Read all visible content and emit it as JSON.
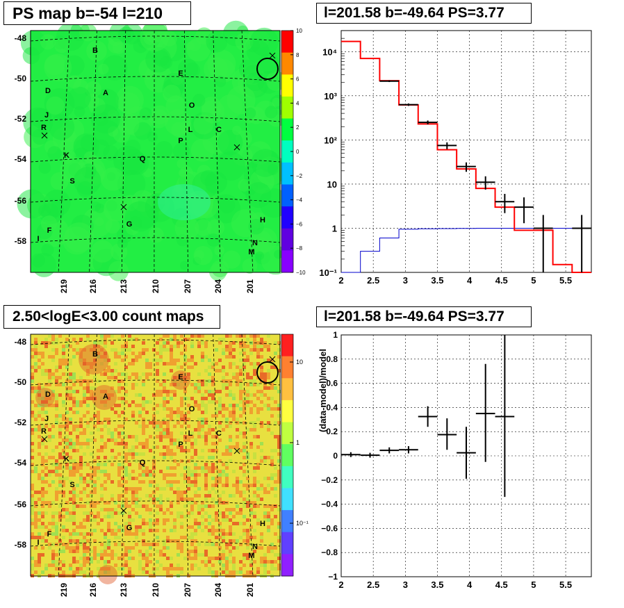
{
  "titles": {
    "ps_map": "PS map b=-54 l=210",
    "spectrum": "l=201.58 b=-49.64 PS=3.77",
    "count_map": "2.50<logE<3.00 count maps",
    "residual": "l=201.58 b=-49.64 PS=3.77"
  },
  "colors": {
    "model_red": "#ff0000",
    "model_blue": "#0000cc",
    "data_black": "#000000",
    "map_green": "#22ee44",
    "count_yellow": "#e8e040",
    "count_orange": "#ee8830"
  },
  "map_axes": {
    "b_ticks": [
      "-48",
      "-50",
      "-52",
      "-54",
      "-56",
      "-58"
    ],
    "l_ticks": [
      "219",
      "216",
      "213",
      "210",
      "207",
      "204",
      "201"
    ]
  },
  "source_labels": [
    "B",
    "E",
    "D",
    "A",
    "O",
    "J",
    "R",
    "L",
    "C",
    "P",
    "K",
    "Q",
    "S",
    "H",
    "F",
    "G",
    "I",
    "N",
    "M"
  ],
  "ps_colorbar_ticks": [
    "10",
    "8",
    "6",
    "4",
    "2",
    "0",
    "−2",
    "−4",
    "−6",
    "−8",
    "−10"
  ],
  "count_colorbar_ticks": [
    "10",
    "1",
    "10⁻¹"
  ],
  "chart_data": [
    {
      "type": "line",
      "title": "l=201.58 b=-49.64 PS=3.77",
      "xlabel": "",
      "ylabel": "",
      "xlim": [
        2,
        5.9
      ],
      "ylim": [
        0.1,
        30000
      ],
      "ylog": true,
      "grid": true,
      "x_ticks": [
        "2",
        "2.5",
        "3",
        "3.5",
        "4",
        "4.5",
        "5",
        "5.5"
      ],
      "y_ticks": [
        "10⁻¹",
        "1",
        "10",
        "10²",
        "10³",
        "10⁴"
      ],
      "bin_edges": [
        2.0,
        2.3,
        2.6,
        2.9,
        3.2,
        3.5,
        3.8,
        4.1,
        4.4,
        4.7,
        5.0,
        5.3,
        5.6,
        5.9
      ],
      "series": [
        {
          "values": [
            17000,
            7000,
            2200,
            620,
            230,
            60,
            22,
            8,
            3,
            0.9,
            0.9,
            0.15,
            0.1
          ]
        },
        {
          "values": [
            0.1,
            0.3,
            0.6,
            0.95,
            0.97,
            0.98,
            0.99,
            1.0,
            1.0,
            1.0,
            1.0,
            1.0,
            1.0
          ]
        }
      ],
      "data_points": [
        {
          "x": 2.75,
          "y": 2150,
          "xerr": 0.15,
          "ylo": 2050,
          "yhi": 2250
        },
        {
          "x": 3.05,
          "y": 630,
          "xerr": 0.15,
          "ylo": 590,
          "yhi": 670
        },
        {
          "x": 3.35,
          "y": 250,
          "xerr": 0.15,
          "ylo": 225,
          "yhi": 275
        },
        {
          "x": 3.65,
          "y": 75,
          "xerr": 0.15,
          "ylo": 62,
          "yhi": 88
        },
        {
          "x": 3.95,
          "y": 25,
          "xerr": 0.15,
          "ylo": 19,
          "yhi": 31
        },
        {
          "x": 4.25,
          "y": 11,
          "xerr": 0.15,
          "ylo": 7.5,
          "yhi": 15
        },
        {
          "x": 4.55,
          "y": 4,
          "xerr": 0.15,
          "ylo": 2.2,
          "yhi": 6
        },
        {
          "x": 4.85,
          "y": 3,
          "xerr": 0.15,
          "ylo": 1.3,
          "yhi": 5
        },
        {
          "x": 5.15,
          "y": 1,
          "xerr": 0.15,
          "ylo": 0.1,
          "yhi": 2
        },
        {
          "x": 5.75,
          "y": 1,
          "xerr": 0.15,
          "ylo": 0.1,
          "yhi": 2
        }
      ]
    },
    {
      "type": "scatter",
      "title": "l=201.58 b=-49.64 PS=3.77",
      "xlabel": "",
      "ylabel": "(data-model)/model",
      "xlim": [
        2,
        5.9
      ],
      "ylim": [
        -1,
        1
      ],
      "grid": true,
      "x_ticks": [
        "2",
        "2.5",
        "3",
        "3.5",
        "4",
        "4.5",
        "5",
        "5.5"
      ],
      "y_ticks": [
        "−1",
        "−0.8",
        "−0.6",
        "−0.4",
        "−0.2",
        "0",
        "0.2",
        "0.4",
        "0.6",
        "0.8",
        "1"
      ],
      "points": [
        {
          "x": 2.15,
          "y": 0.01,
          "xerr": 0.15,
          "ylo": -0.01,
          "yhi": 0.03
        },
        {
          "x": 2.45,
          "y": 0.005,
          "xerr": 0.15,
          "ylo": -0.015,
          "yhi": 0.025
        },
        {
          "x": 2.75,
          "y": 0.045,
          "xerr": 0.15,
          "ylo": 0.02,
          "yhi": 0.07
        },
        {
          "x": 3.05,
          "y": 0.05,
          "xerr": 0.15,
          "ylo": 0.02,
          "yhi": 0.08
        },
        {
          "x": 3.35,
          "y": 0.325,
          "xerr": 0.15,
          "ylo": 0.24,
          "yhi": 0.41
        },
        {
          "x": 3.65,
          "y": 0.175,
          "xerr": 0.15,
          "ylo": 0.05,
          "yhi": 0.31
        },
        {
          "x": 3.95,
          "y": 0.025,
          "xerr": 0.15,
          "ylo": -0.19,
          "yhi": 0.24
        },
        {
          "x": 4.25,
          "y": 0.35,
          "xerr": 0.15,
          "ylo": -0.05,
          "yhi": 0.76
        },
        {
          "x": 4.55,
          "y": 0.325,
          "xerr": 0.15,
          "ylo": -0.34,
          "yhi": 1.0
        }
      ]
    }
  ]
}
